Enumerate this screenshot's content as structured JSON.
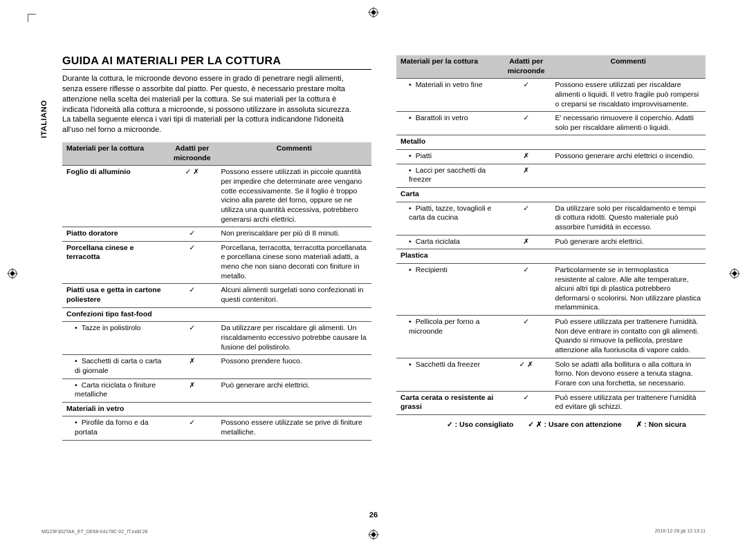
{
  "sidebar_language": "ITALIANO",
  "page_title": "GUIDA AI MATERIALI PER LA COTTURA",
  "intro_text": "Durante la cottura, le microonde devono essere in grado di penetrare negli alimenti, senza essere riflesse o assorbite dal piatto. Per questo, è necessario prestare molta attenzione nella scelta dei materiali per la cottura. Se sui materiali per la cottura è indicata l'idoneità alla cottura a microonde, si possono utilizzare in assoluta sicurezza. La tabella seguente elenca i vari tipi di materiali per la cottura indicandone l'idoneità all'uso nel forno a microonde.",
  "headers": {
    "c1": "Materiali per la cottura",
    "c2": "Adatti per microonde",
    "c3": "Commenti"
  },
  "left_rows": [
    {
      "m": "Foglio di alluminio",
      "bold": true,
      "s": "✓ ✗",
      "c": "Possono essere utilizzati in piccole quantità per impedire che determinate aree vengano cotte eccessivamente. Se il foglio è troppo vicino alla parete del forno, oppure se ne utilizza una quantità eccessiva, potrebbero generarsi archi elettrici."
    },
    {
      "m": "Piatto doratore",
      "bold": true,
      "s": "✓",
      "c": "Non preriscaldare per più di 8 minuti."
    },
    {
      "m": "Porcellana cinese e terracotta",
      "bold": true,
      "s": "✓",
      "c": "Porcellana, terracotta, terracotta porcellanata e porcellana cinese sono materiali adatti, a meno che non siano decorati con finiture in metallo."
    },
    {
      "m": "Piatti usa e getta in cartone poliestere",
      "bold": true,
      "s": "✓",
      "c": "Alcuni alimenti surgelati sono confezionati in questi contenitori."
    },
    {
      "m": "Confezioni tipo fast-food",
      "bold": true,
      "s": "",
      "c": ""
    },
    {
      "m": "Tazze in polistirolo",
      "bold": false,
      "bullet": true,
      "s": "✓",
      "c": "Da utilizzare per riscaldare gli alimenti. Un riscaldamento eccessivo potrebbe causare la fusione del polistirolo."
    },
    {
      "m": "Sacchetti di carta o carta di giornale",
      "bold": false,
      "bullet": true,
      "s": "✗",
      "c": "Possono prendere fuoco."
    },
    {
      "m": "Carta riciclata o finiture metalliche",
      "bold": false,
      "bullet": true,
      "s": "✗",
      "c": "Può generare archi elettrici."
    },
    {
      "m": "Materiali in vetro",
      "bold": true,
      "s": "",
      "c": ""
    },
    {
      "m": "Pirofile da forno e da portata",
      "bold": false,
      "bullet": true,
      "s": "✓",
      "c": "Possono essere utilizzate se prive di finiture metalliche."
    }
  ],
  "right_rows": [
    {
      "m": "Materiali in vetro fine",
      "bold": false,
      "bullet": true,
      "s": "✓",
      "c": "Possono essere utilizzati per riscaldare alimenti o liquidi. Il vetro fragile può rompersi o creparsi se riscaldato improvvisamente."
    },
    {
      "m": "Barattoli in vetro",
      "bold": false,
      "bullet": true,
      "s": "✓",
      "c": "E' necessario rimuovere il coperchio. Adatti solo per riscaldare alimenti o liquidi."
    },
    {
      "m": "Metallo",
      "bold": true,
      "s": "",
      "c": ""
    },
    {
      "m": "Piatti",
      "bold": false,
      "bullet": true,
      "s": "✗",
      "c": "Possono generare archi elettrici o incendio."
    },
    {
      "m": "Lacci per sacchetti da freezer",
      "bold": false,
      "bullet": true,
      "s": "✗",
      "c": ""
    },
    {
      "m": "Carta",
      "bold": true,
      "s": "",
      "c": ""
    },
    {
      "m": "Piatti, tazze, tovaglioli e carta da cucina",
      "bold": false,
      "bullet": true,
      "s": "✓",
      "c": "Da utilizzare solo per riscaldamento e tempi di cottura ridotti. Questo materiale può assorbire l'umidità in eccesso."
    },
    {
      "m": "Carta riciclata",
      "bold": false,
      "bullet": true,
      "s": "✗",
      "c": "Può generare archi elettrici."
    },
    {
      "m": "Plastica",
      "bold": true,
      "s": "",
      "c": ""
    },
    {
      "m": "Recipienti",
      "bold": false,
      "bullet": true,
      "s": "✓",
      "c": "Particolarmente se in termoplastica resistente al calore. Alle alte temperature, alcuni altri tipi di plastica potrebbero deformarsi o scolorirsi. Non utilizzare plastica melamminica."
    },
    {
      "m": "Pellicola per forno a microonde",
      "bold": false,
      "bullet": true,
      "s": "✓",
      "c": "Può essere utilizzata per trattenere l'umidità. Non deve entrare in contatto con gli alimenti. Quando si rimuove la pellicola, prestare attenzione alla fuoriuscita di vapore caldo."
    },
    {
      "m": "Sacchetti da freezer",
      "bold": false,
      "bullet": true,
      "s": "✓ ✗",
      "c": "Solo se adatti alla bollitura o alla cottura in forno. Non devono essere a tenuta stagna. Forare con una forchetta, se necessario."
    },
    {
      "m": "Carta cerata o resistente ai grassi",
      "bold": true,
      "s": "✓",
      "c": "Può essere utilizzata per trattenere l'umidità ed evitare gli schizzi."
    }
  ],
  "legend": {
    "ok": "✓   : Uso consigliato",
    "caution": "✓ ✗   : Usare con attenzione",
    "no": "✗   : Non sicura"
  },
  "page_number": "26",
  "footer_left": "MG23F302TAK_ET_DE68-04178C-02_IT.indd   26",
  "footer_right": "2016-12-28   ㏘ 12:13:11"
}
